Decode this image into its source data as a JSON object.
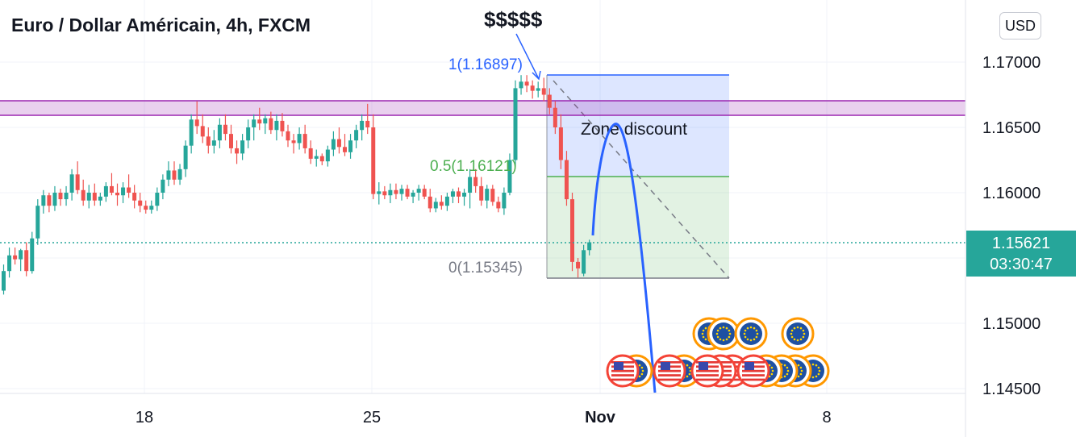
{
  "header": {
    "title": "Euro / Dollar Américain, 4h, FXCM"
  },
  "currency": {
    "label": "USD"
  },
  "current_price": {
    "value": "1.15621",
    "countdown": "03:30:47"
  },
  "annotations": {
    "dollars": "$$$$$",
    "zone": "Zone discount",
    "fib_top": "1(1.16897)",
    "fib_mid": "0.5(1.16121)",
    "fib_bottom": "0(1.15345)"
  },
  "colors": {
    "up": "#26a69a",
    "down": "#ef5350",
    "resistance": "#9c27b0",
    "zone_blue": "#2962ff",
    "zone_green": "#4caf50",
    "curve": "#2962ff",
    "price_line": "#26a69a"
  },
  "icons": {
    "eu_flag": "eu-coin-icon",
    "us_flag": "us-coin-icon"
  },
  "chart_data": {
    "type": "candlestick",
    "title": "Euro / Dollar Américain, 4h, FXCM",
    "x_ticks": [
      "18",
      "25",
      "Nov",
      "8"
    ],
    "y_ticks": [
      "1.14500",
      "1.15000",
      "1.16000",
      "1.16500",
      "1.17000"
    ],
    "ylim": [
      1.1445,
      1.1725
    ],
    "current_price": 1.15621,
    "resistance_zone": [
      1.1659,
      1.1671
    ],
    "fib_levels": [
      {
        "level": "1",
        "price": 1.16897
      },
      {
        "level": "0.5",
        "price": 1.16121
      },
      {
        "level": "0",
        "price": 1.15345
      }
    ],
    "ohlc": [
      [
        1.1525,
        1.1545,
        1.1522,
        1.154
      ],
      [
        1.154,
        1.1558,
        1.1535,
        1.1552
      ],
      [
        1.1552,
        1.1558,
        1.1545,
        1.1549
      ],
      [
        1.1549,
        1.1557,
        1.154,
        1.1556
      ],
      [
        1.1556,
        1.1562,
        1.1536,
        1.154
      ],
      [
        1.154,
        1.157,
        1.1538,
        1.1565
      ],
      [
        1.1565,
        1.1595,
        1.156,
        1.159
      ],
      [
        1.159,
        1.1602,
        1.1584,
        1.1598
      ],
      [
        1.1598,
        1.16,
        1.1585,
        1.159
      ],
      [
        1.159,
        1.1605,
        1.1586,
        1.16
      ],
      [
        1.16,
        1.1603,
        1.159,
        1.1595
      ],
      [
        1.1595,
        1.1605,
        1.159,
        1.16
      ],
      [
        1.16,
        1.1618,
        1.1594,
        1.1614
      ],
      [
        1.1614,
        1.1624,
        1.1599,
        1.1602
      ],
      [
        1.1602,
        1.161,
        1.159,
        1.1594
      ],
      [
        1.1594,
        1.1606,
        1.1588,
        1.16
      ],
      [
        1.16,
        1.1607,
        1.159,
        1.1594
      ],
      [
        1.1594,
        1.16,
        1.159,
        1.1597
      ],
      [
        1.1597,
        1.1608,
        1.1593,
        1.1605
      ],
      [
        1.1605,
        1.1615,
        1.1598,
        1.16
      ],
      [
        1.16,
        1.1607,
        1.159,
        1.1598
      ],
      [
        1.1598,
        1.1608,
        1.1592,
        1.1604
      ],
      [
        1.1604,
        1.1614,
        1.1596,
        1.16
      ],
      [
        1.16,
        1.1606,
        1.1588,
        1.1594
      ],
      [
        1.1594,
        1.16,
        1.1585,
        1.159
      ],
      [
        1.159,
        1.1594,
        1.1584,
        1.1587
      ],
      [
        1.1587,
        1.1594,
        1.1584,
        1.159
      ],
      [
        1.159,
        1.1604,
        1.1586,
        1.16
      ],
      [
        1.16,
        1.1614,
        1.1595,
        1.161
      ],
      [
        1.161,
        1.1624,
        1.1605,
        1.1617
      ],
      [
        1.1617,
        1.1624,
        1.1606,
        1.161
      ],
      [
        1.161,
        1.1622,
        1.1606,
        1.1618
      ],
      [
        1.1618,
        1.164,
        1.1612,
        1.1636
      ],
      [
        1.1636,
        1.166,
        1.163,
        1.1656
      ],
      [
        1.1656,
        1.167,
        1.1645,
        1.1651
      ],
      [
        1.1651,
        1.166,
        1.1638,
        1.1643
      ],
      [
        1.1643,
        1.165,
        1.163,
        1.1636
      ],
      [
        1.1636,
        1.1648,
        1.163,
        1.164
      ],
      [
        1.164,
        1.1657,
        1.1634,
        1.1652
      ],
      [
        1.1652,
        1.166,
        1.164,
        1.1645
      ],
      [
        1.1645,
        1.1652,
        1.163,
        1.1634
      ],
      [
        1.1634,
        1.164,
        1.1622,
        1.163
      ],
      [
        1.163,
        1.1645,
        1.1625,
        1.164
      ],
      [
        1.164,
        1.1656,
        1.1634,
        1.165
      ],
      [
        1.165,
        1.166,
        1.164,
        1.1656
      ],
      [
        1.1656,
        1.1665,
        1.1648,
        1.1653
      ],
      [
        1.1653,
        1.166,
        1.1645,
        1.1657
      ],
      [
        1.1657,
        1.1662,
        1.1645,
        1.1648
      ],
      [
        1.1648,
        1.166,
        1.164,
        1.1655
      ],
      [
        1.1655,
        1.1661,
        1.1643,
        1.1647
      ],
      [
        1.1647,
        1.1652,
        1.1635,
        1.164
      ],
      [
        1.164,
        1.1645,
        1.163,
        1.1638
      ],
      [
        1.1638,
        1.165,
        1.1633,
        1.1645
      ],
      [
        1.1645,
        1.1652,
        1.163,
        1.1634
      ],
      [
        1.1634,
        1.164,
        1.1622,
        1.1626
      ],
      [
        1.1626,
        1.1633,
        1.162,
        1.1628
      ],
      [
        1.1628,
        1.163,
        1.1621,
        1.1624
      ],
      [
        1.1624,
        1.1636,
        1.162,
        1.1633
      ],
      [
        1.1633,
        1.1647,
        1.1628,
        1.1641
      ],
      [
        1.1641,
        1.165,
        1.163,
        1.1635
      ],
      [
        1.1635,
        1.1645,
        1.1628,
        1.1631
      ],
      [
        1.1631,
        1.1645,
        1.1626,
        1.164
      ],
      [
        1.164,
        1.1652,
        1.1634,
        1.1648
      ],
      [
        1.1648,
        1.166,
        1.164,
        1.1655
      ],
      [
        1.1655,
        1.1668,
        1.1645,
        1.165
      ],
      [
        1.165,
        1.166,
        1.1595,
        1.1599
      ],
      [
        1.1599,
        1.1608,
        1.1591,
        1.1601
      ],
      [
        1.1601,
        1.1605,
        1.1595,
        1.1598
      ],
      [
        1.1598,
        1.1607,
        1.1592,
        1.1602
      ],
      [
        1.1602,
        1.1607,
        1.1595,
        1.1599
      ],
      [
        1.1599,
        1.1606,
        1.1594,
        1.1603
      ],
      [
        1.1603,
        1.1606,
        1.1595,
        1.1597
      ],
      [
        1.1597,
        1.1602,
        1.1592,
        1.16
      ],
      [
        1.16,
        1.1606,
        1.1594,
        1.1603
      ],
      [
        1.1603,
        1.1606,
        1.1595,
        1.1597
      ],
      [
        1.1597,
        1.1603,
        1.1585,
        1.1588
      ],
      [
        1.1588,
        1.1596,
        1.1585,
        1.1593
      ],
      [
        1.1593,
        1.1598,
        1.1587,
        1.159
      ],
      [
        1.159,
        1.16,
        1.1586,
        1.1597
      ],
      [
        1.1597,
        1.1603,
        1.1592,
        1.1601
      ],
      [
        1.1601,
        1.1604,
        1.1592,
        1.1597
      ],
      [
        1.1597,
        1.1603,
        1.159,
        1.16
      ],
      [
        1.16,
        1.1618,
        1.1588,
        1.1612
      ],
      [
        1.1612,
        1.1618,
        1.16,
        1.1605
      ],
      [
        1.1605,
        1.1612,
        1.159,
        1.1594
      ],
      [
        1.1594,
        1.1606,
        1.1588,
        1.1603
      ],
      [
        1.1603,
        1.1606,
        1.159,
        1.1593
      ],
      [
        1.1593,
        1.1597,
        1.1585,
        1.1588
      ],
      [
        1.1588,
        1.1604,
        1.1583,
        1.16
      ],
      [
        1.16,
        1.163,
        1.1598,
        1.1625
      ],
      [
        1.1625,
        1.1686,
        1.162,
        1.168
      ],
      [
        1.168,
        1.169,
        1.1675,
        1.1685
      ],
      [
        1.1685,
        1.169,
        1.1677,
        1.1682
      ],
      [
        1.1682,
        1.1686,
        1.1672,
        1.1678
      ],
      [
        1.1678,
        1.1685,
        1.1673,
        1.168
      ],
      [
        1.168,
        1.1688,
        1.167,
        1.1675
      ],
      [
        1.1675,
        1.168,
        1.166,
        1.1665
      ],
      [
        1.1665,
        1.167,
        1.1645,
        1.165
      ],
      [
        1.165,
        1.166,
        1.1618,
        1.1625
      ],
      [
        1.1625,
        1.1632,
        1.159,
        1.1595
      ],
      [
        1.1595,
        1.16,
        1.154,
        1.1547
      ],
      [
        1.1547,
        1.155,
        1.1535,
        1.1542
      ],
      [
        1.1538,
        1.156,
        1.1536,
        1.1556
      ],
      [
        1.1556,
        1.1564,
        1.1552,
        1.1562
      ]
    ],
    "projection": {
      "points": [
        [
          "Nov -1",
          1.1563
        ],
        [
          "Nov",
          1.165
        ],
        [
          "Nov +1",
          1.1652
        ],
        [
          "Nov +3",
          1.1445
        ]
      ]
    }
  }
}
